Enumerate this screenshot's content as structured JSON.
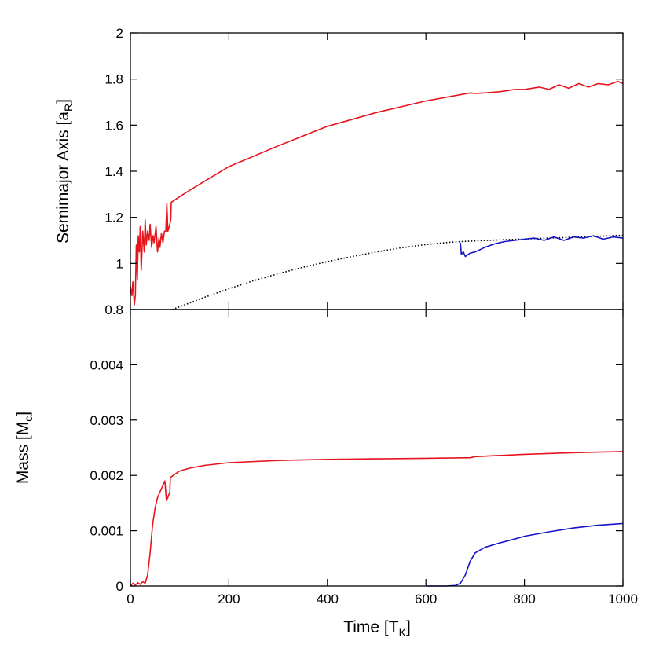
{
  "chart_data": [
    {
      "panel": "top",
      "type": "line",
      "ylabel": "Semimajor Axis [a",
      "ylabel_sub": "R",
      "ylabel_end": "]",
      "xlim": [
        0,
        1000
      ],
      "ylim": [
        0.8,
        2
      ],
      "x_ticks": [
        0,
        200,
        400,
        600,
        800,
        1000
      ],
      "y_ticks": [
        0.8,
        1,
        1.2,
        1.4,
        1.6,
        1.8,
        2
      ],
      "y_tick_labels": [
        "0.8",
        "1",
        "1.2",
        "1.4",
        "1.6",
        "1.8",
        "2"
      ],
      "grid": false,
      "series": [
        {
          "color": "#e8141c",
          "style": "solid",
          "points": [
            [
              0,
              0.9
            ],
            [
              3,
              0.86
            ],
            [
              5,
              0.92
            ],
            [
              8,
              0.82
            ],
            [
              10,
              0.86
            ],
            [
              12,
              1.08
            ],
            [
              14,
              0.93
            ],
            [
              16,
              1.12
            ],
            [
              18,
              1.05
            ],
            [
              20,
              1.16
            ],
            [
              22,
              0.97
            ],
            [
              25,
              1.14
            ],
            [
              28,
              1.05
            ],
            [
              30,
              1.19
            ],
            [
              32,
              1.08
            ],
            [
              35,
              1.14
            ],
            [
              38,
              1.1
            ],
            [
              40,
              1.17
            ],
            [
              43,
              1.07
            ],
            [
              46,
              1.12
            ],
            [
              48,
              1.09
            ],
            [
              52,
              1.16
            ],
            [
              55,
              1.05
            ],
            [
              58,
              1.11
            ],
            [
              60,
              1.07
            ],
            [
              63,
              1.13
            ],
            [
              66,
              1.09
            ],
            [
              69,
              1.14
            ],
            [
              72,
              1.14
            ],
            [
              74,
              1.26
            ],
            [
              76,
              1.14
            ],
            [
              79,
              1.16
            ],
            [
              82,
              1.19
            ],
            [
              83,
              1.265
            ],
            [
              90,
              1.275
            ],
            [
              100,
              1.29
            ],
            [
              130,
              1.33
            ],
            [
              200,
              1.42
            ],
            [
              300,
              1.51
            ],
            [
              400,
              1.595
            ],
            [
              500,
              1.655
            ],
            [
              600,
              1.705
            ],
            [
              690,
              1.74
            ],
            [
              700,
              1.738
            ],
            [
              720,
              1.74
            ],
            [
              750,
              1.745
            ],
            [
              780,
              1.755
            ],
            [
              800,
              1.755
            ],
            [
              830,
              1.765
            ],
            [
              850,
              1.755
            ],
            [
              870,
              1.775
            ],
            [
              890,
              1.76
            ],
            [
              910,
              1.78
            ],
            [
              930,
              1.765
            ],
            [
              950,
              1.78
            ],
            [
              970,
              1.775
            ],
            [
              990,
              1.79
            ],
            [
              1000,
              1.78
            ]
          ]
        },
        {
          "color": "#000000",
          "style": "dotted",
          "points": [
            [
              85,
              0.8
            ],
            [
              100,
              0.812
            ],
            [
              150,
              0.853
            ],
            [
              200,
              0.89
            ],
            [
              250,
              0.925
            ],
            [
              300,
              0.955
            ],
            [
              350,
              0.983
            ],
            [
              400,
              1.008
            ],
            [
              450,
              1.03
            ],
            [
              500,
              1.05
            ],
            [
              550,
              1.068
            ],
            [
              600,
              1.082
            ],
            [
              650,
              1.092
            ],
            [
              700,
              1.098
            ],
            [
              750,
              1.102
            ],
            [
              800,
              1.106
            ],
            [
              850,
              1.11
            ],
            [
              900,
              1.114
            ],
            [
              950,
              1.118
            ],
            [
              1000,
              1.122
            ]
          ]
        },
        {
          "color": "#1414c8",
          "style": "solid",
          "points": [
            [
              670,
              1.09
            ],
            [
              672,
              1.04
            ],
            [
              676,
              1.05
            ],
            [
              680,
              1.03
            ],
            [
              690,
              1.045
            ],
            [
              700,
              1.05
            ],
            [
              720,
              1.07
            ],
            [
              740,
              1.085
            ],
            [
              760,
              1.095
            ],
            [
              780,
              1.1
            ],
            [
              800,
              1.105
            ],
            [
              820,
              1.11
            ],
            [
              840,
              1.1
            ],
            [
              860,
              1.115
            ],
            [
              880,
              1.1
            ],
            [
              900,
              1.115
            ],
            [
              920,
              1.11
            ],
            [
              940,
              1.12
            ],
            [
              960,
              1.105
            ],
            [
              980,
              1.115
            ],
            [
              1000,
              1.11
            ]
          ]
        }
      ]
    },
    {
      "panel": "bottom",
      "type": "line",
      "xlabel": "Time [T",
      "xlabel_sub": "K",
      "xlabel_end": "]",
      "ylabel": "Mass [M",
      "ylabel_sub": "c",
      "ylabel_end": "]",
      "xlim": [
        0,
        1000
      ],
      "ylim": [
        0,
        0.005
      ],
      "x_ticks": [
        0,
        200,
        400,
        600,
        800,
        1000
      ],
      "x_tick_labels": [
        "0",
        "200",
        "400",
        "600",
        "800",
        "1000"
      ],
      "y_ticks": [
        0,
        0.001,
        0.002,
        0.003,
        0.004
      ],
      "y_tick_labels": [
        "0",
        "0.001",
        "0.002",
        "0.003",
        "0.004"
      ],
      "grid": false,
      "series": [
        {
          "color": "#e8141c",
          "style": "solid",
          "points": [
            [
              0,
              0
            ],
            [
              5,
              5e-05
            ],
            [
              10,
              2e-05
            ],
            [
              15,
              6e-05
            ],
            [
              20,
              3e-05
            ],
            [
              25,
              8e-05
            ],
            [
              30,
              5e-05
            ],
            [
              35,
              0.0002
            ],
            [
              40,
              0.0006
            ],
            [
              45,
              0.0011
            ],
            [
              50,
              0.0014
            ],
            [
              55,
              0.0016
            ],
            [
              60,
              0.0017
            ],
            [
              65,
              0.0018
            ],
            [
              70,
              0.0019
            ],
            [
              73,
              0.00155
            ],
            [
              76,
              0.0016
            ],
            [
              78,
              0.00165
            ],
            [
              80,
              0.0017
            ],
            [
              81,
              0.00196
            ],
            [
              90,
              0.00202
            ],
            [
              100,
              0.00208
            ],
            [
              120,
              0.00213
            ],
            [
              150,
              0.00218
            ],
            [
              200,
              0.00223
            ],
            [
              300,
              0.00227
            ],
            [
              400,
              0.00229
            ],
            [
              500,
              0.0023
            ],
            [
              600,
              0.00231
            ],
            [
              690,
              0.00232
            ],
            [
              700,
              0.00234
            ],
            [
              800,
              0.00238
            ],
            [
              900,
              0.00241
            ],
            [
              1000,
              0.00243
            ]
          ]
        },
        {
          "color": "#1414c8",
          "style": "solid",
          "points": [
            [
              600,
              0
            ],
            [
              620,
              0
            ],
            [
              640,
              0
            ],
            [
              660,
              1e-05
            ],
            [
              670,
              5e-05
            ],
            [
              680,
              0.0002
            ],
            [
              690,
              0.00045
            ],
            [
              700,
              0.0006
            ],
            [
              720,
              0.0007
            ],
            [
              750,
              0.00078
            ],
            [
              780,
              0.00085
            ],
            [
              800,
              0.0009
            ],
            [
              850,
              0.00098
            ],
            [
              900,
              0.00105
            ],
            [
              950,
              0.0011
            ],
            [
              1000,
              0.00113
            ]
          ]
        }
      ]
    }
  ]
}
